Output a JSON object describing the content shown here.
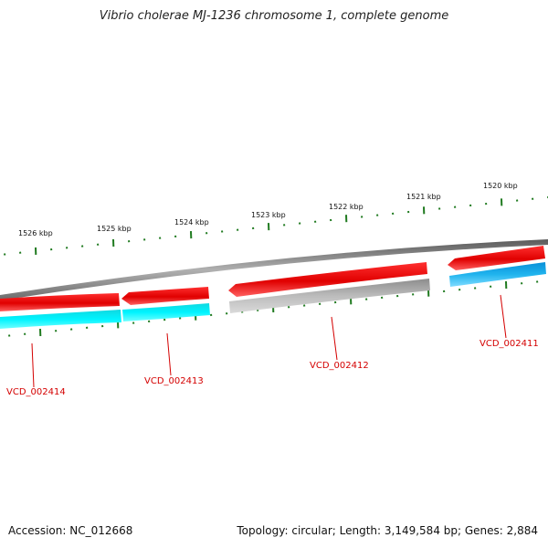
{
  "title": "Vibrio cholerae MJ-1236 chromosome 1, complete genome",
  "footer": {
    "accession": "Accession: NC_012668",
    "summary": "Topology: circular; Length: 3,149,584 bp; Genes: 2,884"
  },
  "colors": {
    "backbone": "#8a8a8a",
    "gene_forward_red": "#e00000",
    "gene_unknown_gray": "#b4b4b4",
    "cog_cyan": "#00e8f0",
    "cog_blue": "#20b4ee",
    "tick_green": "#1f7a1f",
    "label_red": "#d40000"
  },
  "ticks": [
    {
      "label": "1526 kbp"
    },
    {
      "label": "1525 kbp"
    },
    {
      "label": "1524 kbp"
    },
    {
      "label": "1523 kbp"
    },
    {
      "label": "1522 kbp"
    },
    {
      "label": "1521 kbp"
    },
    {
      "label": "1520 kbp"
    }
  ],
  "genes": [
    {
      "label": "VCD_002414",
      "feature_color": "red",
      "cog_color": "cyan"
    },
    {
      "label": "VCD_002413",
      "feature_color": "red",
      "cog_color": "cyan"
    },
    {
      "label": "VCD_002412",
      "feature_color": "red",
      "cog_color": "gray"
    },
    {
      "label": "VCD_002411",
      "feature_color": "red",
      "cog_color": "blue"
    }
  ]
}
